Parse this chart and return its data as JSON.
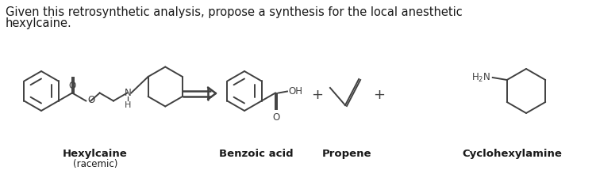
{
  "title_line1": "Given this retrosynthetic analysis, propose a synthesis for the local anesthetic",
  "title_line2": "hexylcaine.",
  "label_hexylcaine": "Hexylcaine",
  "label_racemic": "(racemic)",
  "label_benzoic": "Benzoic acid",
  "label_propene": "Propene",
  "label_cyclohexylamine": "Cyclohexylamine",
  "bg_color": "#ffffff",
  "line_color": "#404040",
  "text_color": "#1a1a1a",
  "title_fontsize": 10.5,
  "label_fontsize": 9.5,
  "figsize": [
    7.51,
    2.25
  ],
  "dpi": 100
}
